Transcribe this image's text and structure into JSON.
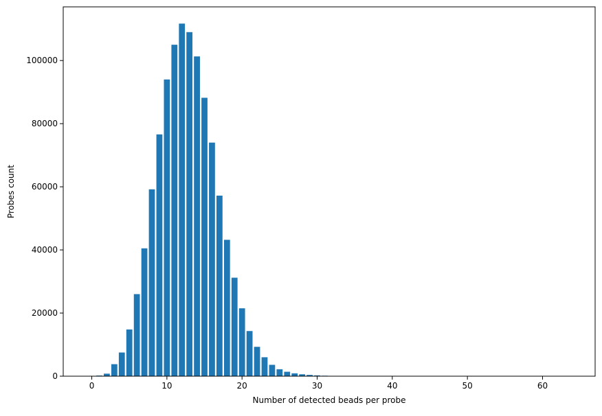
{
  "chart_data": {
    "type": "bar",
    "title": "",
    "xlabel": "Number of detected beads per probe",
    "ylabel": "Probes count",
    "xlim": [
      -3.8,
      67
    ],
    "ylim": [
      0,
      117000
    ],
    "x_ticks": [
      0,
      10,
      20,
      30,
      40,
      50,
      60
    ],
    "y_ticks": [
      0,
      20000,
      40000,
      60000,
      80000,
      100000
    ],
    "x_tick_labels": [
      "0",
      "10",
      "20",
      "30",
      "40",
      "50",
      "60"
    ],
    "y_tick_labels": [
      "0",
      "20000",
      "40000",
      "60000",
      "80000",
      "100000"
    ],
    "bar_color": "#1f77b4",
    "grid": false,
    "x": [
      1,
      2,
      3,
      4,
      5,
      6,
      7,
      8,
      9,
      10,
      11,
      12,
      13,
      14,
      15,
      16,
      17,
      18,
      19,
      20,
      21,
      22,
      23,
      24,
      25,
      26,
      27,
      28,
      29,
      30,
      31,
      32,
      33,
      34,
      35,
      36,
      37,
      38,
      39,
      40,
      41
    ],
    "values": [
      200,
      800,
      3800,
      7500,
      14800,
      26000,
      40500,
      59200,
      76600,
      94000,
      105000,
      111700,
      109000,
      101300,
      88200,
      74000,
      57200,
      43200,
      31200,
      21500,
      14300,
      9300,
      6000,
      3600,
      2200,
      1400,
      900,
      600,
      400,
      250,
      150,
      100,
      80,
      60,
      50,
      40,
      30,
      25,
      20,
      15,
      10
    ]
  }
}
